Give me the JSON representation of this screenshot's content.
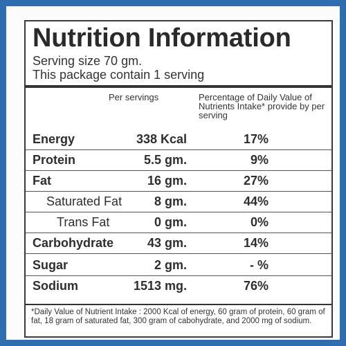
{
  "title": "Nutrition Information",
  "serving_size": "Serving size 70 gm.",
  "package_info": "This package contain 1 serving",
  "columns": {
    "per_serving": "Per servings",
    "percent_dv": "Percentage of Daily Value of Nutrients Intake* provide by per serving"
  },
  "rows": [
    {
      "name": "Energy",
      "amount": "338 Kcal",
      "dv": "17%"
    },
    {
      "name": "Protein",
      "amount": "5.5 gm.",
      "dv": "9%"
    },
    {
      "name": "Fat",
      "amount": "16 gm.",
      "dv": "27%"
    },
    {
      "name": "Saturated Fat",
      "amount": "8 gm.",
      "dv": "44%"
    },
    {
      "name": "Trans Fat",
      "amount": "0 gm.",
      "dv": "0%"
    },
    {
      "name": "Carbohydrate",
      "amount": "43 gm.",
      "dv": "14%"
    },
    {
      "name": "Sugar",
      "amount": "2 gm.",
      "dv": "- %"
    },
    {
      "name": "Sodium",
      "amount": "1513 mg.",
      "dv": "76%"
    }
  ],
  "footnote": "*Daily Value of Nutrient Intake : 2000 Kcal of energy, 60 gram of protein, 60 gram of fat, 18 gram of saturated fat, 300 gram of cabohydrate, and 2000 mg of sodium.",
  "colors": {
    "border": "#2e6db0",
    "text": "#2e2e2e"
  }
}
